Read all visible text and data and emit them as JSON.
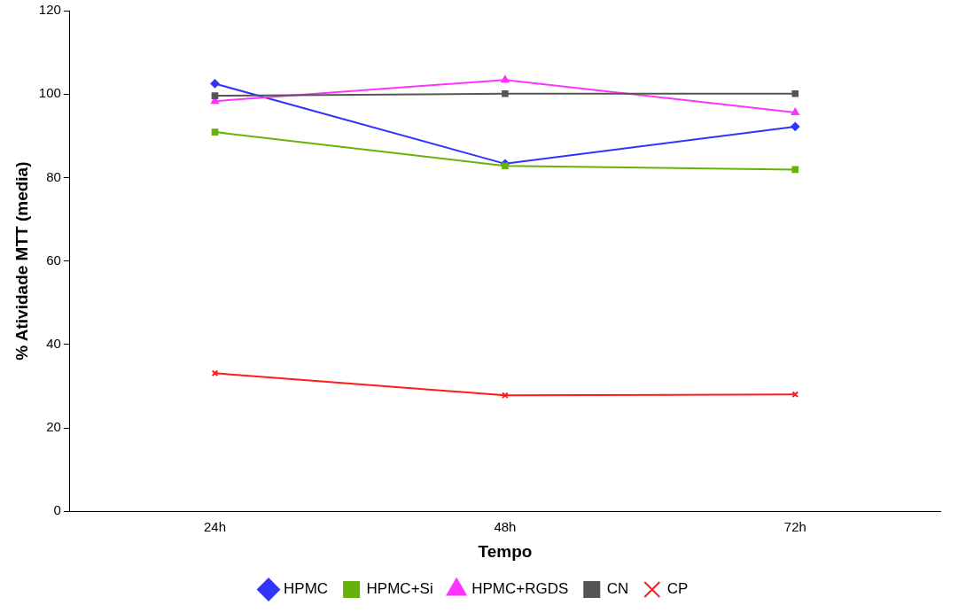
{
  "chart_data": {
    "type": "line",
    "xlabel": "Tempo",
    "ylabel": "% Atividade MTT (media)",
    "categories": [
      "24h",
      "48h",
      "72h"
    ],
    "ylim": [
      0,
      120
    ],
    "yticks": [
      0,
      20,
      40,
      60,
      80,
      100,
      120
    ],
    "grid": false,
    "legend": "bottom",
    "line_style": "solid",
    "series": [
      {
        "name": "HPMC",
        "color": "#3333ff",
        "marker": "diamond",
        "values": [
          102.5,
          83.3,
          92.2
        ]
      },
      {
        "name": "HPMC+Si",
        "color": "#66b20a",
        "marker": "square",
        "values": [
          90.9,
          82.8,
          81.9
        ]
      },
      {
        "name": "HPMC+RGDS",
        "color": "#ff33ff",
        "marker": "triangle",
        "values": [
          98.3,
          103.4,
          95.6
        ]
      },
      {
        "name": "CN",
        "color": "#555555",
        "marker": "square",
        "values": [
          99.6,
          100.1,
          100.1
        ]
      },
      {
        "name": "CP",
        "color": "#ff1a1a",
        "marker": "cross",
        "values": [
          33.1,
          27.8,
          28.0
        ]
      }
    ]
  }
}
